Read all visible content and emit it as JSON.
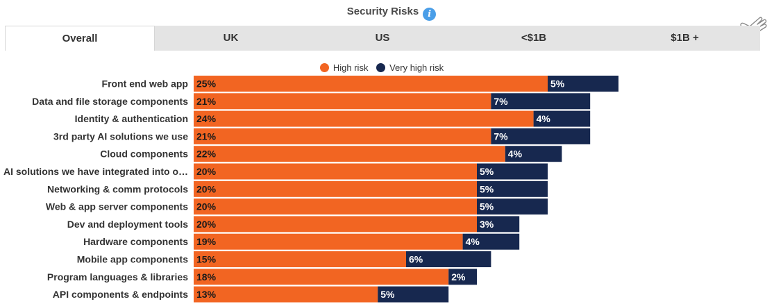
{
  "header": {
    "title": "Security Risks",
    "info_icon": "info-icon",
    "cursor_icon": "pointing-hand-icon"
  },
  "tabs": [
    {
      "label": "Overall",
      "active": true
    },
    {
      "label": "UK",
      "active": false
    },
    {
      "label": "US",
      "active": false
    },
    {
      "label": "<$1B",
      "active": false
    },
    {
      "label": "$1B +",
      "active": false
    }
  ],
  "colors": {
    "high_risk": "#f26522",
    "very_high_risk": "#17284f",
    "tab_bar": "#e4e4e4"
  },
  "chart_data": {
    "type": "bar",
    "orientation": "horizontal",
    "stacked": true,
    "legend": {
      "placement": "top",
      "entries": [
        "High risk",
        "Very high risk"
      ]
    },
    "categories": [
      "Front end web app",
      "Data and file storage components",
      "Identity & authentication",
      "3rd party AI solutions we use",
      "Cloud components",
      "AI solutions we have integrated into o…",
      "Networking & comm protocols",
      "Web & app server components",
      "Dev and deployment tools",
      "Hardware components",
      "Mobile app components",
      "Program languages & libraries",
      "API components & endpoints"
    ],
    "series": [
      {
        "name": "High risk",
        "values": [
          25,
          21,
          24,
          21,
          22,
          20,
          20,
          20,
          20,
          19,
          15,
          18,
          13
        ],
        "labels": [
          "25%",
          "21%",
          "24%",
          "21%",
          "22%",
          "20%",
          "20%",
          "20%",
          "20%",
          "19%",
          "15%",
          "18%",
          "13%"
        ]
      },
      {
        "name": "Very high risk",
        "values": [
          5,
          7,
          4,
          7,
          4,
          5,
          5,
          5,
          3,
          4,
          6,
          2,
          5
        ],
        "labels": [
          "5%",
          "7%",
          "4%",
          "7%",
          "4%",
          "5%",
          "5%",
          "5%",
          "3%",
          "4%",
          "6%",
          "2%",
          "5%"
        ]
      }
    ],
    "xlim": [
      0,
      42
    ],
    "grid": false,
    "axis_ticks_shown": false
  }
}
